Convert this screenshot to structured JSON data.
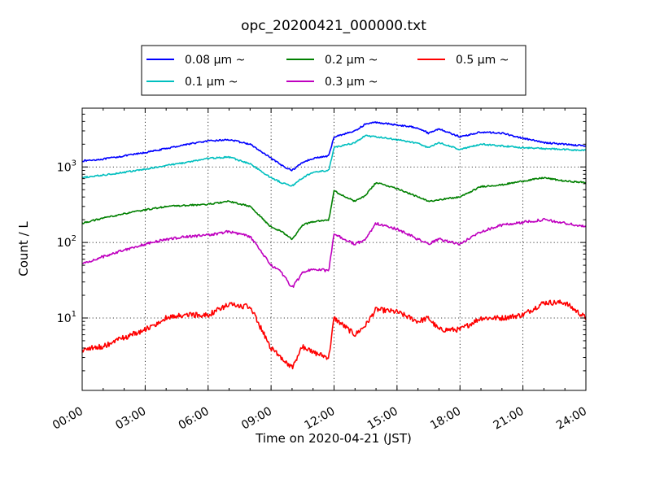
{
  "chart_data": {
    "type": "line",
    "title": "opc_20200421_000000.txt",
    "xlabel": "Time on 2020-04-21 (JST)",
    "ylabel": "Count / L",
    "yscale": "log",
    "xlim": [
      "00:00",
      "24:00"
    ],
    "ylim": [
      1.1,
      6000
    ],
    "grid": true,
    "legend_position": "top-center",
    "x_ticks": [
      "00:00",
      "03:00",
      "06:00",
      "09:00",
      "12:00",
      "15:00",
      "18:00",
      "21:00",
      "24:00"
    ],
    "y_ticks": [
      "10^1",
      "10^2",
      "10^3"
    ],
    "x": [
      "00:00",
      "01:00",
      "02:00",
      "03:00",
      "04:00",
      "05:00",
      "06:00",
      "07:00",
      "08:00",
      "09:00",
      "09:30",
      "10:00",
      "10:30",
      "11:00",
      "11:45",
      "12:00",
      "13:00",
      "13:30",
      "14:00",
      "15:00",
      "16:00",
      "16:30",
      "17:00",
      "18:00",
      "19:00",
      "20:00",
      "21:00",
      "22:00",
      "23:00",
      "24:00"
    ],
    "series": [
      {
        "name": "0.08 μm ~",
        "color": "#0000ff",
        "values": [
          1200,
          1270,
          1400,
          1550,
          1750,
          2000,
          2200,
          2300,
          2000,
          1300,
          1050,
          900,
          1150,
          1300,
          1400,
          2500,
          3000,
          3700,
          3900,
          3600,
          3300,
          2800,
          3200,
          2500,
          2900,
          2800,
          2400,
          2100,
          2000,
          1900
        ]
      },
      {
        "name": "0.1 μm ~",
        "color": "#00bfbf",
        "values": [
          720,
          780,
          850,
          930,
          1050,
          1150,
          1300,
          1350,
          1100,
          720,
          620,
          560,
          720,
          850,
          900,
          1800,
          2100,
          2600,
          2500,
          2300,
          2050,
          1800,
          2100,
          1700,
          2000,
          1900,
          1800,
          1750,
          1700,
          1650
        ]
      },
      {
        "name": "0.2 μm ~",
        "color": "#008000",
        "values": [
          180,
          210,
          240,
          270,
          300,
          310,
          320,
          350,
          300,
          160,
          140,
          110,
          170,
          190,
          200,
          480,
          350,
          420,
          620,
          520,
          400,
          350,
          370,
          400,
          550,
          580,
          650,
          720,
          650,
          620
        ]
      },
      {
        "name": "0.3 μm ~",
        "color": "#bf00bf",
        "values": [
          52,
          65,
          80,
          95,
          110,
          120,
          125,
          140,
          120,
          50,
          40,
          25,
          40,
          45,
          42,
          130,
          95,
          110,
          180,
          150,
          110,
          95,
          110,
          95,
          140,
          170,
          185,
          200,
          180,
          160
        ]
      },
      {
        "name": "0.5 μm ~",
        "color": "#ff0000",
        "values": [
          3.8,
          4.2,
          5.5,
          7,
          10,
          11,
          11,
          15,
          14,
          4,
          3,
          2.2,
          4.2,
          3.5,
          3,
          10,
          6,
          8,
          13,
          12,
          9,
          10,
          7,
          7,
          10,
          10,
          11,
          16,
          16,
          10
        ]
      }
    ]
  }
}
